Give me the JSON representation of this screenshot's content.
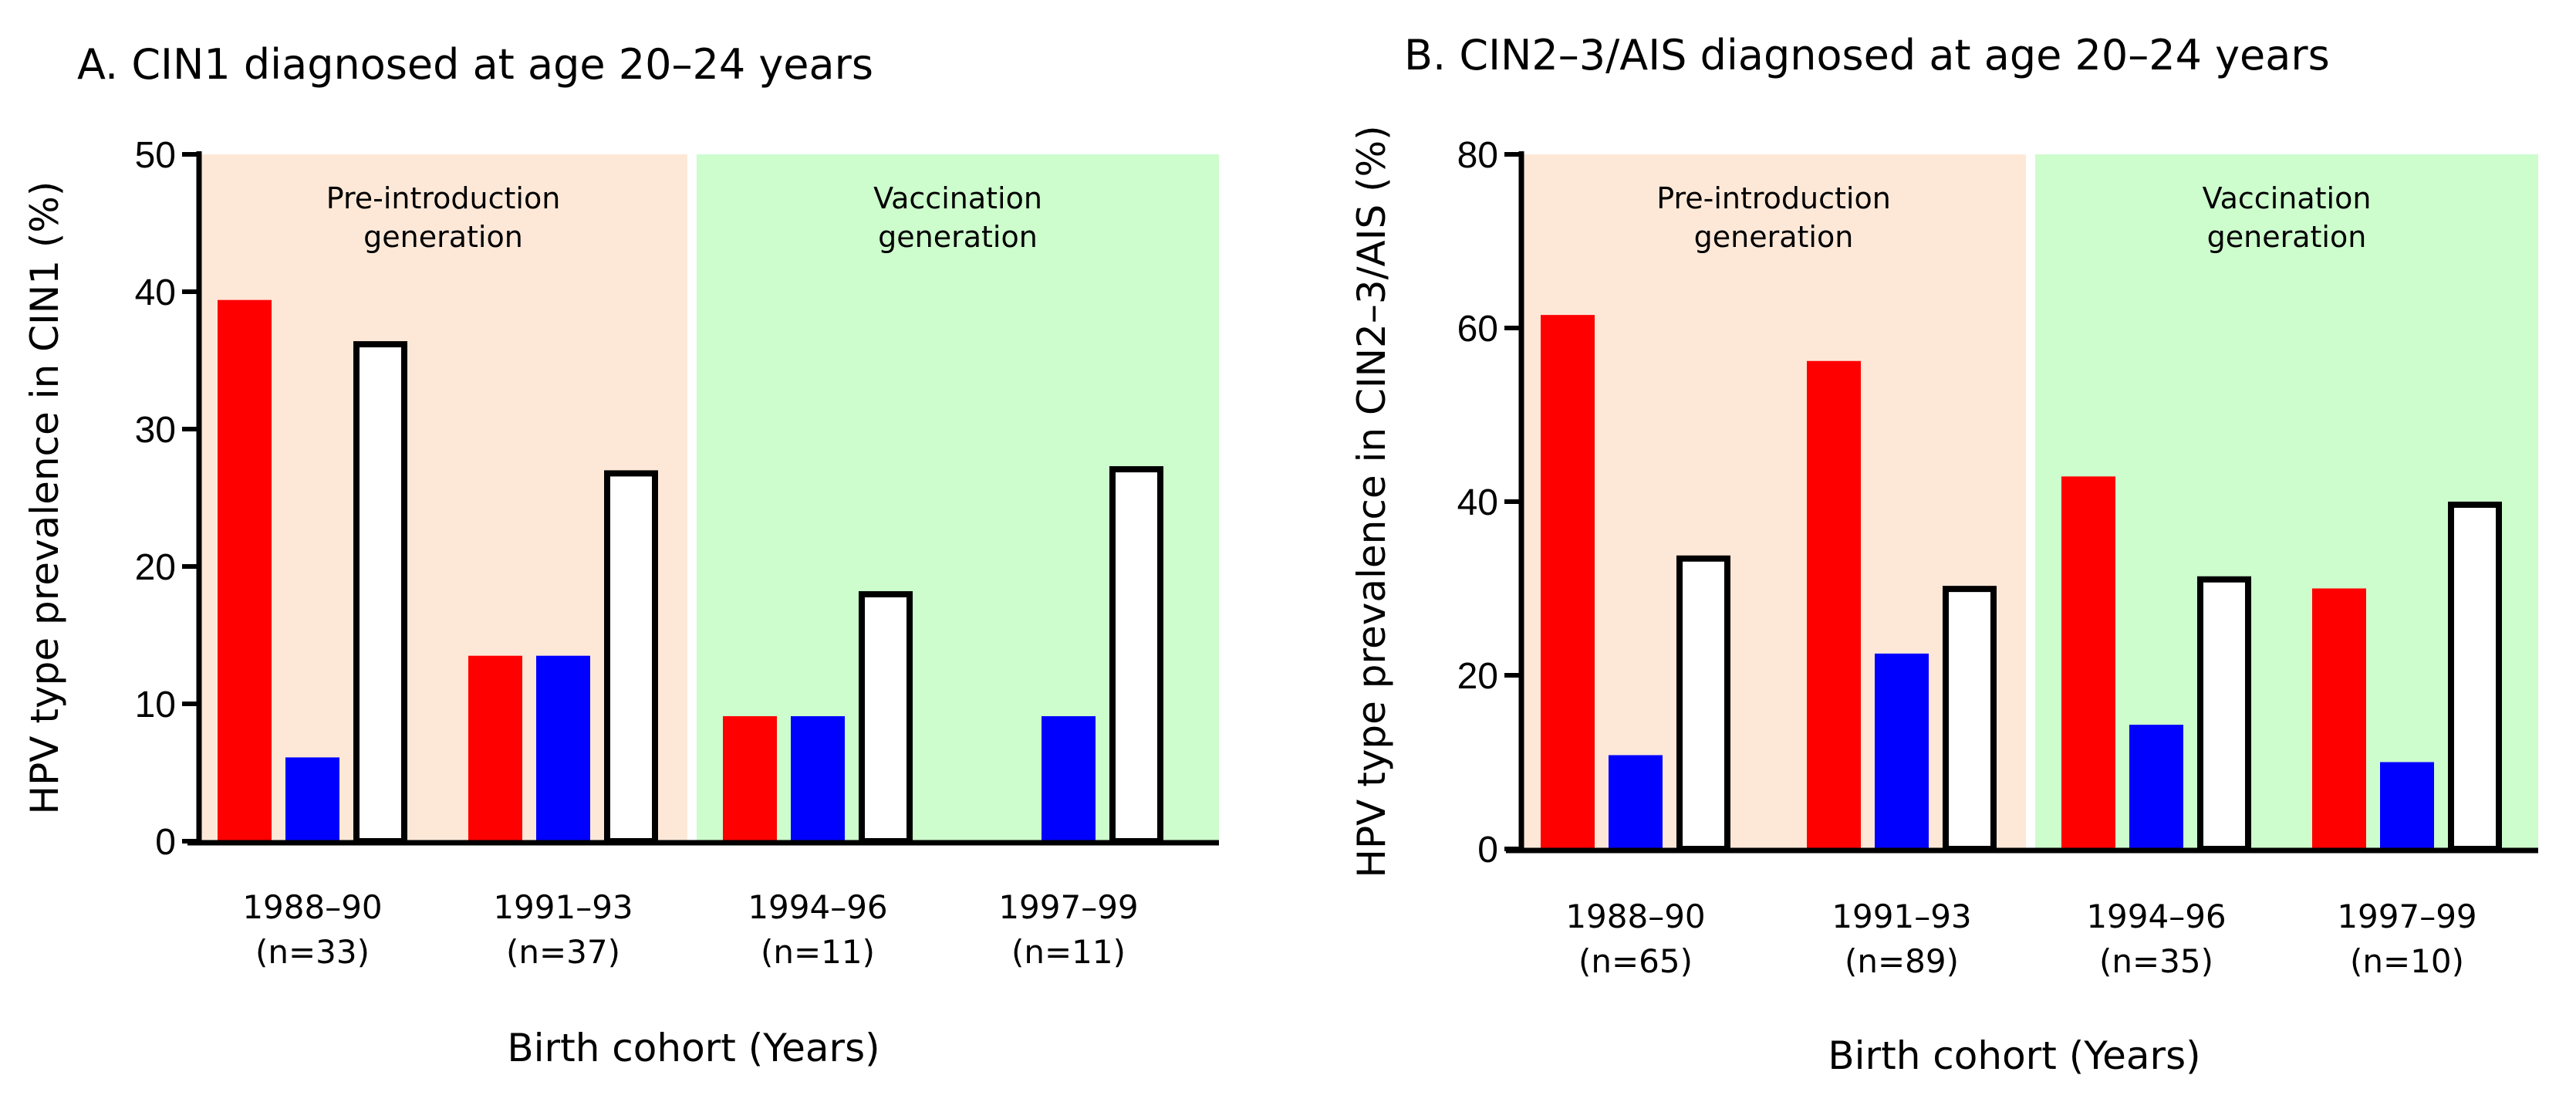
{
  "figure": {
    "panels": [
      "A",
      "B"
    ]
  },
  "colors": {
    "pre_bg": "#fde8d8",
    "vac_bg": "#cdfccd",
    "series_red": "#ff0000",
    "series_blue": "#0000ff",
    "series_white": "#ffffff",
    "outline": "#000000"
  },
  "chart_data": [
    {
      "type": "bar",
      "title": "A. CIN1 diagnosed at age 20–24 years",
      "ylabel": "HPV type prevalence in CIN1 (%)",
      "xlabel": "Birth cohort (Years)",
      "ylim": [
        0,
        50
      ],
      "yticks": [
        "0",
        "10",
        "20",
        "30",
        "40",
        "50"
      ],
      "categories": [
        "1988–90",
        "1991–93",
        "1994–96",
        "1997–99"
      ],
      "category_counts": [
        "(n=33)",
        "(n=37)",
        "(n=11)",
        "(n=11)"
      ],
      "regions": [
        {
          "label_line1": "Pre-introduction",
          "label_line2": "generation",
          "categories": [
            0,
            1
          ],
          "color": "#fde8d8"
        },
        {
          "label_line1": "Vaccination",
          "label_line2": "generation",
          "categories": [
            2,
            3
          ],
          "color": "#cdfccd"
        }
      ],
      "series": [
        {
          "name": "red",
          "color": "#ff0000",
          "values": [
            39.4,
            13.5,
            9.1,
            0
          ]
        },
        {
          "name": "blue",
          "color": "#0000ff",
          "values": [
            6.1,
            13.5,
            9.1,
            9.1
          ]
        },
        {
          "name": "white",
          "color": "#ffffff",
          "values": [
            36.4,
            27.0,
            18.2,
            27.3
          ]
        }
      ]
    },
    {
      "type": "bar",
      "title": "B. CIN2–3/AIS diagnosed at age 20–24 years",
      "ylabel": "HPV type prevalence in CIN2–3/AIS (%)",
      "xlabel": "Birth cohort (Years)",
      "ylim": [
        0,
        80
      ],
      "yticks": [
        "0",
        "20",
        "40",
        "60",
        "80"
      ],
      "categories": [
        "1988–90",
        "1991–93",
        "1994–96",
        "1997–99"
      ],
      "category_counts": [
        "(n=65)",
        "(n=89)",
        "(n=35)",
        "(n=10)"
      ],
      "regions": [
        {
          "label_line1": "Pre-introduction",
          "label_line2": "generation",
          "categories": [
            0,
            1
          ],
          "color": "#fde8d8"
        },
        {
          "label_line1": "Vaccination",
          "label_line2": "generation",
          "categories": [
            2,
            3
          ],
          "color": "#cdfccd"
        }
      ],
      "series": [
        {
          "name": "red",
          "color": "#ff0000",
          "values": [
            61.5,
            56.2,
            42.9,
            30.0
          ]
        },
        {
          "name": "blue",
          "color": "#0000ff",
          "values": [
            10.8,
            22.5,
            14.3,
            10.0
          ]
        },
        {
          "name": "white",
          "color": "#ffffff",
          "values": [
            33.8,
            30.3,
            31.4,
            40.0
          ]
        }
      ]
    }
  ]
}
